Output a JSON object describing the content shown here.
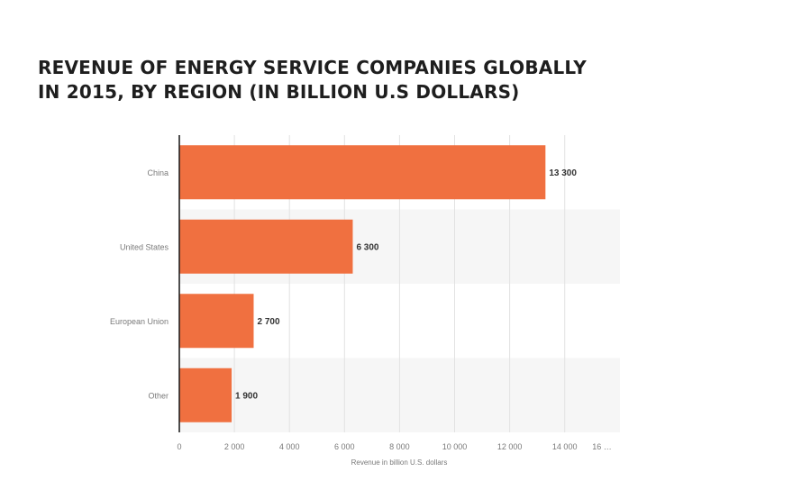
{
  "title_lines": [
    "REVENUE OF ENERGY SERVICE COMPANIES GLOBALLY",
    "IN 2015, BY REGION (IN BILLION U.S DOLLARS)"
  ],
  "colors": {
    "bar": "#f07040",
    "band": "#f6f6f6",
    "grid": "#e2e2e2",
    "axis": "#222222",
    "tick_text": "#7a7a7a",
    "label_text": "#333333"
  },
  "chart_data": {
    "type": "bar",
    "orientation": "horizontal",
    "title": "REVENUE OF ENERGY SERVICE COMPANIES GLOBALLY IN 2015, BY REGION (IN BILLION U.S DOLLARS)",
    "categories": [
      "China",
      "United States",
      "European Union",
      "Other"
    ],
    "values": [
      13300,
      6300,
      2700,
      1900
    ],
    "value_labels": [
      "13 300",
      "6 300",
      "2 700",
      "1 900"
    ],
    "xlabel": "Revenue in billion U.S. dollars",
    "ylabel": "",
    "xlim": [
      0,
      16000
    ],
    "ticks": [
      0,
      2000,
      4000,
      6000,
      8000,
      10000,
      12000,
      14000
    ],
    "tick_labels": [
      "0",
      "2 000",
      "4 000",
      "6 000",
      "8 000",
      "10 000",
      "12 000",
      "14 000"
    ],
    "overflow_tick_label": "16 …",
    "grid": true,
    "legend": "none"
  }
}
